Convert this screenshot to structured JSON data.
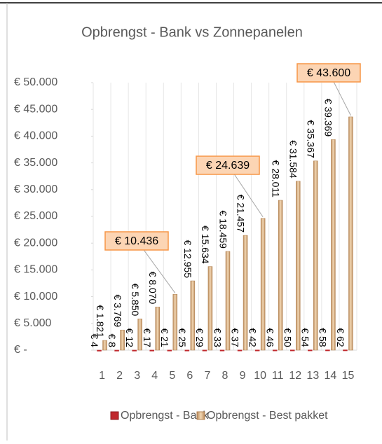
{
  "chart_data": {
    "type": "bar",
    "title": "Opbrengst - Bank vs Zonnepanelen",
    "categories": [
      "1",
      "2",
      "3",
      "4",
      "5",
      "6",
      "7",
      "8",
      "9",
      "10",
      "11",
      "12",
      "13",
      "14",
      "15"
    ],
    "series": [
      {
        "name": "Opbrengst - Bank",
        "color": "#c0282d",
        "values": [
          4,
          8,
          12,
          17,
          21,
          25,
          29,
          33,
          37,
          42,
          46,
          50,
          54,
          58,
          62
        ],
        "value_labels": [
          "€ 4",
          "€ 8",
          "€ 12",
          "€ 17",
          "€ 21",
          "€ 25",
          "€ 29",
          "€ 33",
          "€ 37",
          "€ 42",
          "€ 46",
          "€ 50",
          "€ 54",
          "€ 58",
          "€ 62"
        ]
      },
      {
        "name": "Opbrengst - Best pakket",
        "color": "#d9b48a",
        "values": [
          1821,
          3769,
          5850,
          8070,
          10436,
          12955,
          15634,
          18459,
          21457,
          24639,
          28011,
          31584,
          35367,
          39369,
          43600
        ],
        "value_labels": [
          "€ 1.821",
          "€ 3.769",
          "€ 5.850",
          "€ 8.070",
          "€ 10.436",
          "€ 12.955",
          "€ 15.634",
          "€ 18.459",
          "€ 21.457",
          "€ 24.639",
          "€ 28.011",
          "€ 31.584",
          "€ 35.367",
          "€ 39.369",
          "€ 43.600"
        ]
      }
    ],
    "ylim": [
      0,
      50000
    ],
    "yticks": [
      {
        "value": 0,
        "label": "€ -"
      },
      {
        "value": 5000,
        "label": "€ 5.000"
      },
      {
        "value": 10000,
        "label": "€ 10.000"
      },
      {
        "value": 15000,
        "label": "€ 15.000"
      },
      {
        "value": 20000,
        "label": "€ 20.000"
      },
      {
        "value": 25000,
        "label": "€ 25.000"
      },
      {
        "value": 30000,
        "label": "€ 30.000"
      },
      {
        "value": 35000,
        "label": "€ 35.000"
      },
      {
        "value": 40000,
        "label": "€ 40.000"
      },
      {
        "value": 45000,
        "label": "€ 45.000"
      },
      {
        "value": 50000,
        "label": "€ 50.000"
      }
    ],
    "legend": "bottom"
  }
}
